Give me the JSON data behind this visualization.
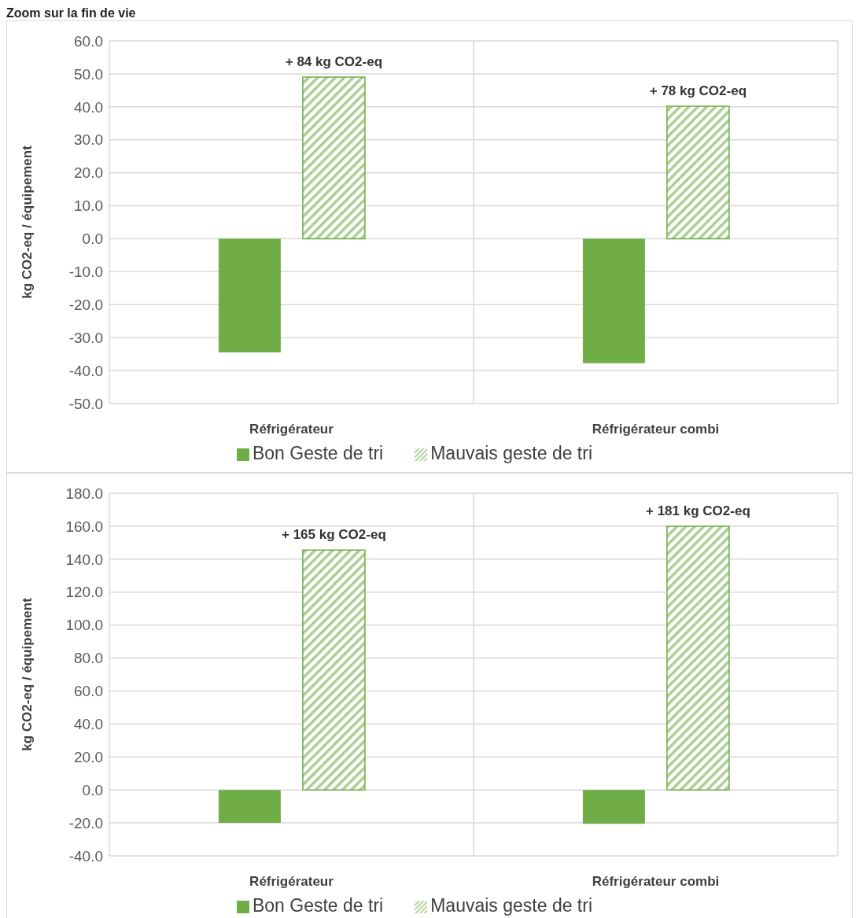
{
  "chart_data": [
    {
      "type": "bar",
      "title": "Zoom sur la fin de vie",
      "ylabel": "kg CO2-eq / équipement",
      "categories": [
        "Réfrigérateur",
        "Réfrigérateur combi"
      ],
      "series": [
        {
          "name": "Bon Geste de tri",
          "color": "#70ad47",
          "values": [
            -34.5,
            -37.8
          ]
        },
        {
          "name": "Mauvais geste de tri",
          "color": "#70ad47",
          "values": [
            49.0,
            40.2
          ],
          "value_labels": [
            "+ 84 kg CO2-eq",
            "+ 78 kg CO2-eq"
          ]
        }
      ],
      "ylim": [
        -50,
        60
      ],
      "yticks": [
        {
          "value": -50,
          "label": "-50.0"
        },
        {
          "value": -40,
          "label": "-40.0"
        },
        {
          "value": -30,
          "label": "-30.0"
        },
        {
          "value": -20,
          "label": "-20.0"
        },
        {
          "value": -10,
          "label": "-10.0"
        },
        {
          "value": 0,
          "label": "0.0"
        },
        {
          "value": 10,
          "label": "10.0"
        },
        {
          "value": 20,
          "label": "20.0"
        },
        {
          "value": 30,
          "label": "30.0"
        },
        {
          "value": 40,
          "label": "40.0"
        },
        {
          "value": 50,
          "label": "50.0"
        },
        {
          "value": 60,
          "label": "60.0"
        }
      ],
      "grid": true,
      "legend": "bottom"
    },
    {
      "type": "bar",
      "ylabel": "kg CO2-eq / équipement",
      "categories": [
        "Réfrigérateur",
        "Réfrigérateur combi"
      ],
      "series": [
        {
          "name": "Bon Geste de tri",
          "color": "#70ad47",
          "values": [
            -20.0,
            -20.5
          ]
        },
        {
          "name": "Mauvais geste de tri",
          "color": "#70ad47",
          "values": [
            145.5,
            160.0
          ],
          "value_labels": [
            "+ 165 kg CO2-eq",
            "+ 181 kg CO2-eq"
          ]
        }
      ],
      "ylim": [
        -40,
        180
      ],
      "yticks": [
        {
          "value": -40,
          "label": "-40.0"
        },
        {
          "value": -20,
          "label": "-20.0"
        },
        {
          "value": 0,
          "label": "0.0"
        },
        {
          "value": 20,
          "label": "20.0"
        },
        {
          "value": 40,
          "label": "40.0"
        },
        {
          "value": 60,
          "label": "60.0"
        },
        {
          "value": 80,
          "label": "80.0"
        },
        {
          "value": 100,
          "label": "100.0"
        },
        {
          "value": 120,
          "label": "120.0"
        },
        {
          "value": 140,
          "label": "140.0"
        },
        {
          "value": 160,
          "label": "160.0"
        },
        {
          "value": 180,
          "label": "180.0"
        }
      ],
      "grid": true,
      "legend": "bottom"
    }
  ]
}
